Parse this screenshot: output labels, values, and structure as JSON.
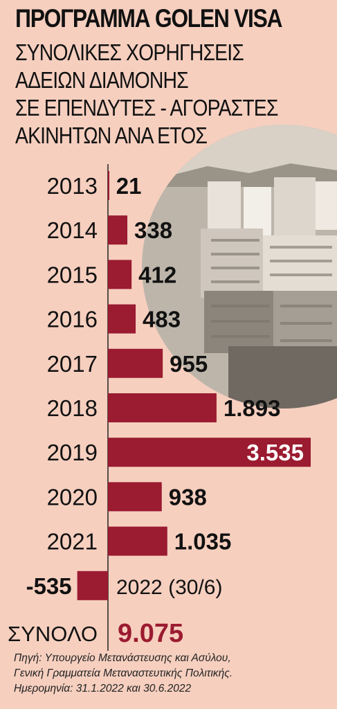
{
  "header": {
    "title": "ΠΡΟΓΡΑΜΜΑ GOLEN VISA",
    "subtitle_lines": [
      "ΣΥΝΟΛΙΚΕΣ ΧΟΡΗΓΗΣΕΙΣ",
      "ΑΔΕΙΩΝ ΔΙΑΜΟΝΗΣ",
      "ΣΕ ΕΠΕΝΔΥΤΕΣ - ΑΓΟΡΑΣΤΕΣ",
      "ΑΚΙΝΗΤΩΝ ΑΝΑ ΕΤΟΣ"
    ]
  },
  "chart_data": {
    "type": "bar",
    "orientation": "horizontal",
    "title": "ΠΡΟΓΡΑΜΜΑ GOLEN VISA",
    "subtitle": "ΣΥΝΟΛΙΚΕΣ ΧΟΡΗΓΗΣΕΙΣ ΑΔΕΙΩΝ ΔΙΑΜΟΝΗΣ ΣΕ ΕΠΕΝΔΥΤΕΣ - ΑΓΟΡΑΣΤΕΣ ΑΚΙΝΗΤΩΝ ΑΝΑ ΕΤΟΣ",
    "categories": [
      "2013",
      "2014",
      "2015",
      "2016",
      "2017",
      "2018",
      "2019",
      "2020",
      "2021",
      "2022 (30/6)"
    ],
    "values": [
      21,
      338,
      412,
      483,
      955,
      1893,
      3535,
      938,
      1035,
      -535
    ],
    "value_labels": [
      "21",
      "338",
      "412",
      "483",
      "955",
      "1.893",
      "3.535",
      "938",
      "1.035",
      "-535"
    ],
    "highlight_category": "2019",
    "xlim": [
      -535,
      3535
    ],
    "grid": false,
    "legend": "none",
    "bar_color": "#9b1b30",
    "total_label": "ΣΥΝΟΛΟ",
    "total_value": "9.075"
  },
  "source_lines": [
    "Πηγή: Υπουργείο Μετανάστευσης και Ασύλου,",
    "Γενική Γραμματεία Μεταναστευτικής Πολιτικής.",
    "Ημερομηνία: 31.1.2022 και 30.6.2022"
  ],
  "colors": {
    "background": "#f6cfbf",
    "bar": "#9b1b30",
    "text": "#111111",
    "highlight_text": "#ffffff"
  }
}
